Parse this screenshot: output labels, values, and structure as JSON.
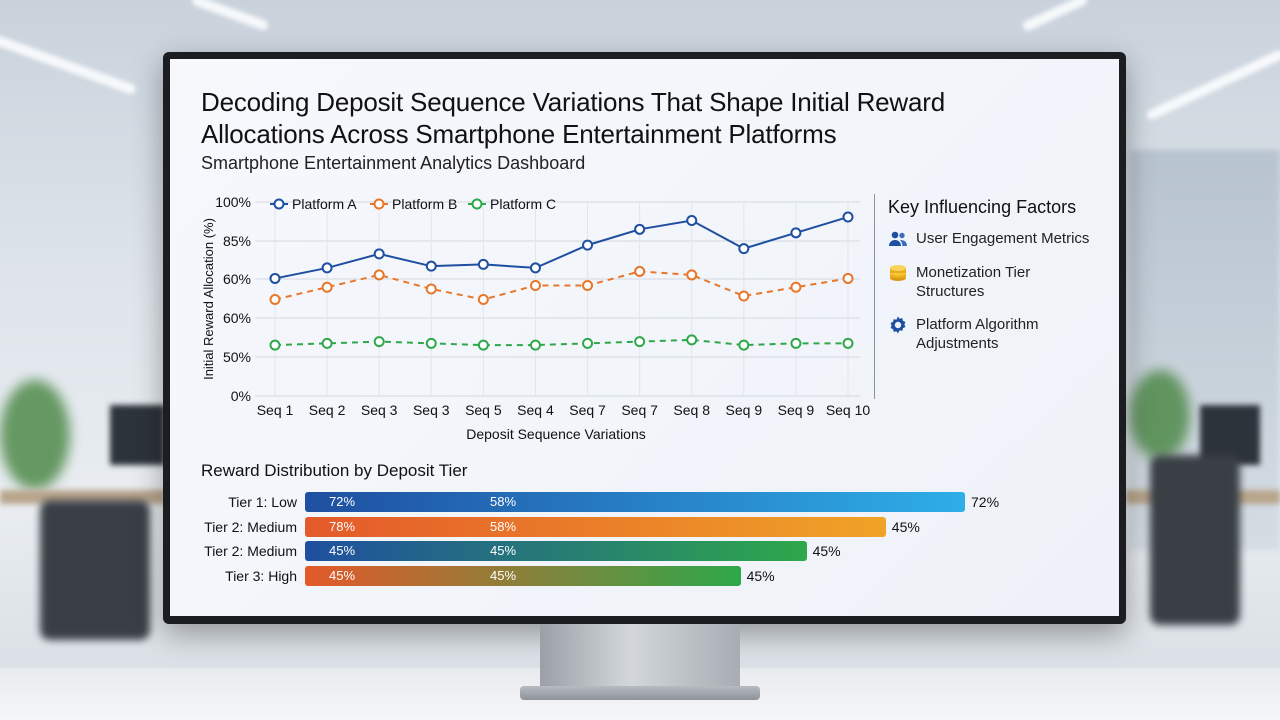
{
  "title": "Decoding Deposit Sequence Variations That Shape Initial Reward Allocations Across Smartphone Entertainment Platforms",
  "subtitle": "Smartphone Entertainment Analytics Dashboard",
  "colors": {
    "platform_a": "#1f4fa0",
    "platform_b": "#e8772a",
    "platform_c": "#2ea84a"
  },
  "chart_data": [
    {
      "type": "line",
      "title": "",
      "xlabel": "Deposit Sequence Variations",
      "ylabel": "Initial Reward Allocation (%)",
      "y_tick_labels": [
        "0%",
        "50%",
        "60%",
        "60%",
        "85%",
        "100%"
      ],
      "categories": [
        "Seq 1",
        "Seq 2",
        "Seq 3",
        "Seq 3",
        "Seq 5",
        "Seq 4",
        "Seq 7",
        "Seq 7",
        "Seq 8",
        "Seq 9",
        "Seq 9",
        "Seq 10"
      ],
      "legend_position": "top",
      "grid": true,
      "series": [
        {
          "name": "Platform A",
          "style": "solid",
          "values": [
            67,
            73,
            81,
            74,
            75,
            73,
            86,
            95,
            100,
            84,
            93,
            102
          ]
        },
        {
          "name": "Platform B",
          "style": "dashed",
          "values": [
            55,
            62,
            69,
            61,
            55,
            63,
            63,
            71,
            69,
            57,
            62,
            67
          ]
        },
        {
          "name": "Platform C",
          "style": "dashed",
          "values": [
            29,
            30,
            31,
            30,
            29,
            29,
            30,
            31,
            32,
            29,
            30,
            30
          ]
        }
      ]
    },
    {
      "type": "bar",
      "title": "Reward Distribution by Deposit Tier",
      "orientation": "horizontal",
      "rows": [
        {
          "label": "Tier 1: Low",
          "v1": "72%",
          "v2": "58%",
          "end": "72%",
          "length": 100,
          "c1": "#1f4fa0",
          "c2": "#2eaee8"
        },
        {
          "label": "Tier 2: Medium",
          "v1": "78%",
          "v2": "58%",
          "end": "45%",
          "length": 88,
          "c1": "#e4592a",
          "c2": "#f0a327"
        },
        {
          "label": "Tier 2: Medium",
          "v1": "45%",
          "v2": "45%",
          "end": "45%",
          "length": 76,
          "c1": "#1f4fa0",
          "c2": "#2ea84a"
        },
        {
          "label": "Tier 3: High",
          "v1": "45%",
          "v2": "45%",
          "end": "45%",
          "length": 66,
          "c1": "#e4592a",
          "c2": "#2ea84a"
        }
      ]
    }
  ],
  "factors": {
    "title": "Key Influencing Factors",
    "items": [
      {
        "icon": "users-icon",
        "text": "User Engagement Metrics"
      },
      {
        "icon": "coins-icon",
        "text": "Monetization Tier Structures"
      },
      {
        "icon": "gear-icon",
        "text": "Platform Algorithm Adjustments"
      }
    ]
  }
}
